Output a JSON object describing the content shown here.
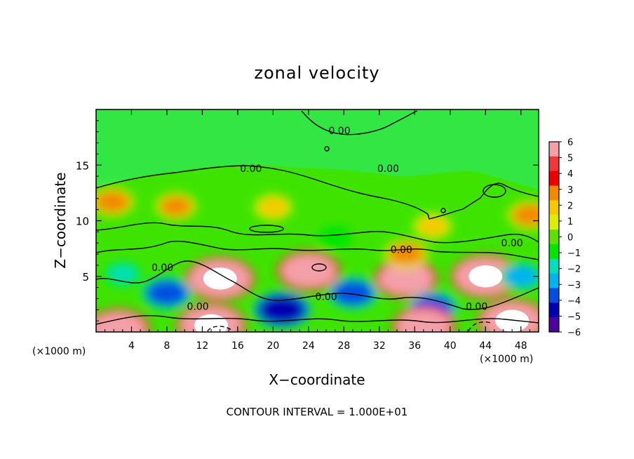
{
  "chart_data": {
    "type": "heatmap",
    "title": "zonal velocity",
    "xlabel": "X−coordinate",
    "ylabel": "Z−coordinate",
    "x_unit_left": "(×1000 m)",
    "x_unit_right": "(×1000 m)",
    "xlim": [
      0,
      50
    ],
    "ylim": [
      0,
      20
    ],
    "x_ticks": [
      4,
      8,
      12,
      16,
      20,
      24,
      28,
      32,
      36,
      40,
      44,
      48
    ],
    "y_ticks": [
      5,
      10,
      15
    ],
    "colorbar": {
      "ticks": [
        "6",
        "5",
        "4",
        "3",
        "2",
        "1",
        "0",
        "−1",
        "−2",
        "−3",
        "−4",
        "−5",
        "−6"
      ],
      "values": [
        6,
        5,
        4,
        3,
        2,
        1,
        0,
        -1,
        -2,
        -3,
        -4,
        -5,
        -6
      ],
      "colors": [
        "#f4a0a8",
        "#f03838",
        "#f00000",
        "#f28a00",
        "#f5c800",
        "#d8f000",
        "#60e000",
        "#00e600",
        "#00e0b8",
        "#00b4f0",
        "#0050e0",
        "#0000b0",
        "#5000a0"
      ]
    },
    "contour_label": "0.00",
    "footer": "CONTOUR INTERVAL = 1.000E+01",
    "features": [
      {
        "x": 14,
        "z": 4.8,
        "value": 7
      },
      {
        "x": 24,
        "z": 5.5,
        "value": 6
      },
      {
        "x": 35,
        "z": 4.8,
        "value": 6
      },
      {
        "x": 44,
        "z": 5.0,
        "value": 7
      },
      {
        "x": 1.8,
        "z": 11.7,
        "value": 3
      },
      {
        "x": 9,
        "z": 11.3,
        "value": 2.5
      },
      {
        "x": 20,
        "z": 11.2,
        "value": 2
      },
      {
        "x": 38,
        "z": 9.5,
        "value": 2
      },
      {
        "x": 35,
        "z": 7.0,
        "value": 3
      },
      {
        "x": 49,
        "z": 10.5,
        "value": 3
      },
      {
        "x": 8,
        "z": 3.5,
        "value": -4
      },
      {
        "x": 21,
        "z": 2.0,
        "value": -5
      },
      {
        "x": 29,
        "z": 3.5,
        "value": -4
      },
      {
        "x": 38,
        "z": 2.2,
        "value": -4
      },
      {
        "x": 48,
        "z": 5.0,
        "value": -3
      },
      {
        "x": 3,
        "z": 5.2,
        "value": -2
      },
      {
        "x": 27,
        "z": 8.5,
        "value": -1.5
      },
      {
        "x": 47,
        "z": 1.0,
        "value": 7
      },
      {
        "x": 37,
        "z": 0.5,
        "value": 6
      },
      {
        "x": 13,
        "z": 0.6,
        "value": 7
      },
      {
        "x": 2.5,
        "z": 0.3,
        "value": 6
      }
    ]
  }
}
